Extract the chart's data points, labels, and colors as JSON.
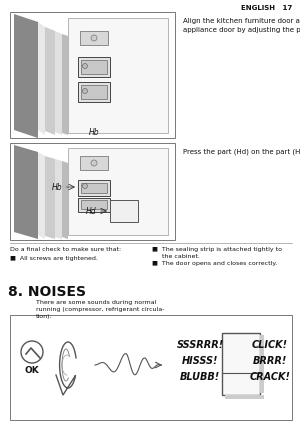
{
  "page_header_right": "ENGLISH   17",
  "bg_color": "#ffffff",
  "text_color": "#111111",
  "text1": "Align the kitchen furniture door and the\nappliance door by adjusting the part (Hb).",
  "text2": "Press the part (Hd) on the part (Hb).",
  "text3_left_title": "Do a final check to make sure that:",
  "text3_bullet1_left": "■  All screws are tightened.",
  "text3_bullet1_right": "■  The sealing strip is attached tightly to\n     the cabinet.",
  "text3_bullet2_right": "■  The door opens and closes correctly.",
  "section_title": "8. NOISES",
  "section_body": "There are some sounds during normal\nrunning (compressor, refrigerant circula-\ntion).",
  "ok_text": "OK",
  "sound_labels_left": [
    "SSSRRR!",
    "HISSS!",
    "BLUBB!"
  ],
  "sound_labels_right": [
    "CLICK!",
    "BRRR!",
    "CRACK!"
  ],
  "label_hb1": "Hb",
  "label_hb2": "Hb",
  "label_hd": "Hd",
  "fig_width": 3.0,
  "fig_height": 4.25,
  "dpi": 100
}
